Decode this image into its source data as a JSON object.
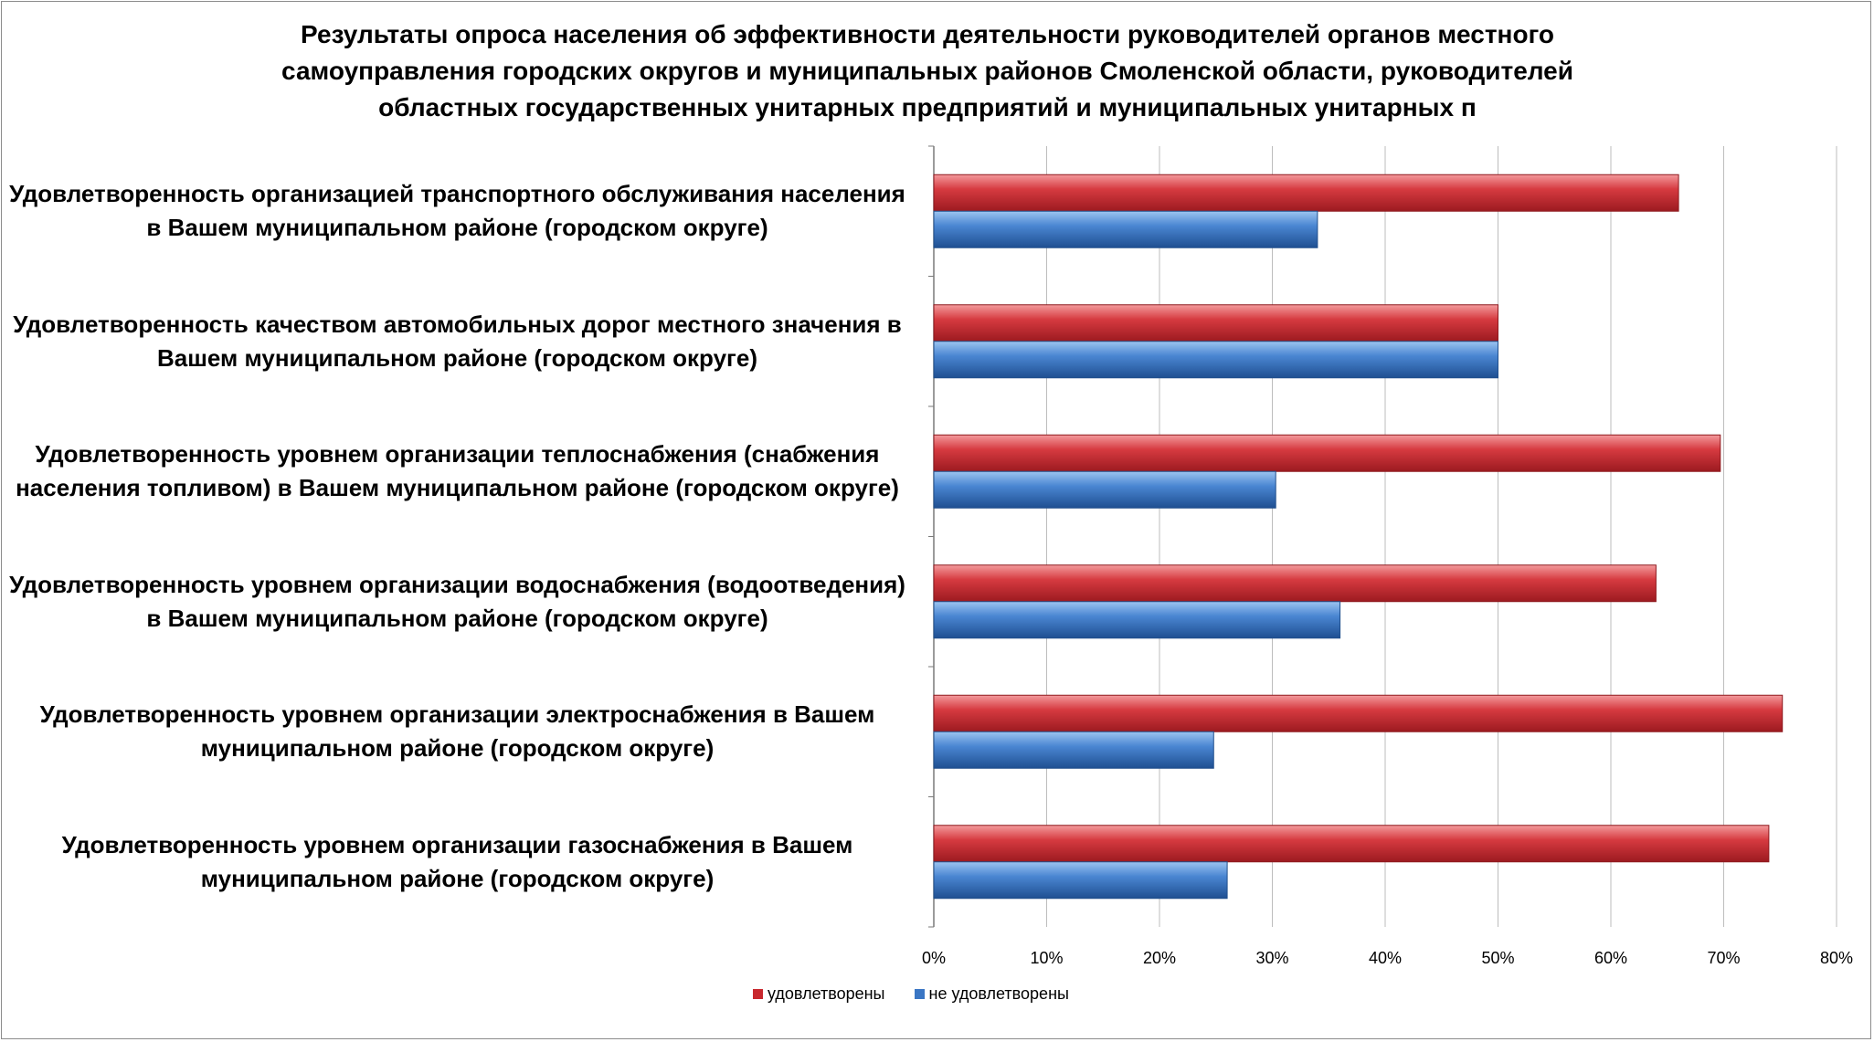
{
  "chart_data": {
    "type": "bar",
    "orientation": "horizontal",
    "title": "Результаты опроса населения об эффективности деятельности руководителей органов местного самоуправления городских округов и муниципальных районов Смоленской области, руководителей областных государственных унитарных предприятий и муниципальных унитарных п",
    "categories": [
      "Удовлетворенность организацией транспортного обслуживания населения в Вашем муниципальном районе (городском округе)",
      "Удовлетворенность качеством автомобильных дорог местного значения в Вашем муниципальном районе (городском округе)",
      "Удовлетворенность уровнем организации теплоснабжения (снабжения населения топливом) в Вашем муниципальном районе (городском округе)",
      "Удовлетворенность уровнем организации водоснабжения (водоотведения) в Вашем муниципальном районе (городском округе)",
      "Удовлетворенность уровнем организации электроснабжения в Вашем муниципальном районе (городском округе)",
      "Удовлетворенность уровнем организации газоснабжения в Вашем муниципальном районе (городском округе)"
    ],
    "series": [
      {
        "name": "удовлетворены",
        "color": "#c8282e",
        "values": [
          66,
          50,
          69.7,
          64,
          75.2,
          74
        ]
      },
      {
        "name": "не удовлетворены",
        "color": "#3a76c4",
        "values": [
          34,
          50,
          30.3,
          36,
          24.8,
          26
        ]
      }
    ],
    "xlim": [
      0,
      80
    ],
    "xticks": [
      "0%",
      "10%",
      "20%",
      "30%",
      "40%",
      "50%",
      "60%",
      "70%",
      "80%"
    ],
    "grid": true,
    "legend_position": "bottom"
  }
}
